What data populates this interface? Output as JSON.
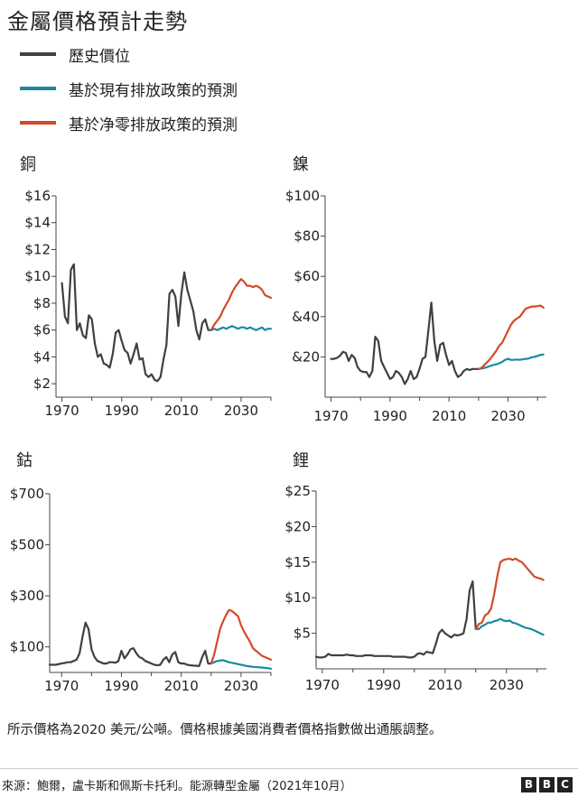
{
  "title": "金屬價格預計走勢",
  "legend": [
    {
      "label": "歷史價位",
      "color": "#404040"
    },
    {
      "label": "基於現有排放政策的預測",
      "color": "#1b8aa0"
    },
    {
      "label": "基於净零排放政策的預測",
      "color": "#d4492a"
    }
  ],
  "footnote": "所示價格為2020 美元/公噸。價格根據美國消費者價格指數做出通脹調整。",
  "source": "來源：鮑爾，盧卡斯和佩斯卡托利。能源轉型金屬（2021年10月）",
  "logo": [
    "B",
    "B",
    "C"
  ],
  "chart_data": [
    {
      "type": "line",
      "title": "銅",
      "xlim": [
        1968,
        2040
      ],
      "ylim": [
        1,
        16
      ],
      "xticks": [
        {
          "value": 1970,
          "label": "1970"
        },
        {
          "value": 1990,
          "label": "1990"
        },
        {
          "value": 2010,
          "label": "2010"
        },
        {
          "value": 2030,
          "label": "2030"
        }
      ],
      "yticks": [
        {
          "value": 2,
          "label": "$2"
        },
        {
          "value": 4,
          "label": "$4"
        },
        {
          "value": 6,
          "label": "$6"
        },
        {
          "value": 8,
          "label": "$8"
        },
        {
          "value": 10,
          "label": "$10"
        },
        {
          "value": 12,
          "label": "$12"
        },
        {
          "value": 14,
          "label": "$14"
        },
        {
          "value": 16,
          "label": "$16"
        }
      ],
      "series": [
        {
          "name": "歷史價位",
          "color": "#404040",
          "x": [
            1970,
            1971,
            1972,
            1973,
            1974,
            1975,
            1976,
            1977,
            1978,
            1979,
            1980,
            1981,
            1982,
            1983,
            1984,
            1985,
            1986,
            1987,
            1988,
            1989,
            1990,
            1991,
            1992,
            1993,
            1994,
            1995,
            1996,
            1997,
            1998,
            1999,
            2000,
            2001,
            2002,
            2003,
            2004,
            2005,
            2006,
            2007,
            2008,
            2009,
            2010,
            2011,
            2012,
            2013,
            2014,
            2015,
            2016,
            2017,
            2018,
            2019,
            2020
          ],
          "y": [
            9.5,
            7.0,
            6.5,
            10.5,
            10.9,
            6.0,
            6.5,
            5.6,
            5.4,
            7.1,
            6.8,
            5.0,
            4.0,
            4.2,
            3.5,
            3.4,
            3.2,
            4.2,
            5.8,
            6.0,
            5.2,
            4.5,
            4.3,
            3.5,
            4.2,
            5.0,
            3.8,
            3.9,
            2.7,
            2.5,
            2.7,
            2.3,
            2.2,
            2.5,
            3.8,
            4.9,
            8.7,
            9.0,
            8.5,
            6.3,
            8.7,
            10.3,
            9.0,
            8.2,
            7.4,
            6.0,
            5.3,
            6.5,
            6.8,
            6.0,
            6.0
          ]
        },
        {
          "name": "基於現有排放政策的預測",
          "color": "#1b8aa0",
          "x": [
            2020,
            2021,
            2022,
            2023,
            2024,
            2025,
            2026,
            2027,
            2028,
            2029,
            2030,
            2031,
            2032,
            2033,
            2034,
            2035,
            2036,
            2037,
            2038,
            2039,
            2040
          ],
          "y": [
            6.0,
            6.1,
            6.0,
            6.1,
            6.2,
            6.1,
            6.2,
            6.3,
            6.2,
            6.1,
            6.2,
            6.2,
            6.1,
            6.2,
            6.1,
            6.0,
            6.1,
            6.2,
            6.0,
            6.1,
            6.1
          ]
        },
        {
          "name": "基於净零排放政策的預測",
          "color": "#d4492a",
          "x": [
            2020,
            2021,
            2022,
            2023,
            2024,
            2025,
            2026,
            2027,
            2028,
            2029,
            2030,
            2031,
            2032,
            2033,
            2034,
            2035,
            2036,
            2037,
            2038,
            2039,
            2040
          ],
          "y": [
            6.0,
            6.4,
            6.7,
            7.0,
            7.5,
            7.9,
            8.3,
            8.8,
            9.2,
            9.5,
            9.8,
            9.6,
            9.3,
            9.3,
            9.2,
            9.3,
            9.2,
            9.0,
            8.6,
            8.5,
            8.4
          ]
        }
      ]
    },
    {
      "type": "line",
      "title": "鎳",
      "xlim": [
        1968,
        2043
      ],
      "ylim": [
        0,
        100
      ],
      "xticks": [
        {
          "value": 1970,
          "label": "1970"
        },
        {
          "value": 1990,
          "label": "1990"
        },
        {
          "value": 2010,
          "label": "2010"
        },
        {
          "value": 2030,
          "label": "2030"
        }
      ],
      "yticks": [
        {
          "value": 20,
          "label": "&20"
        },
        {
          "value": 40,
          "label": "&40"
        },
        {
          "value": 60,
          "label": "$60"
        },
        {
          "value": 80,
          "label": "$80"
        },
        {
          "value": 100,
          "label": "$100"
        }
      ],
      "series": [
        {
          "name": "歷史價位",
          "color": "#404040",
          "x": [
            1970,
            1971,
            1972,
            1973,
            1974,
            1975,
            1976,
            1977,
            1978,
            1979,
            1980,
            1981,
            1982,
            1983,
            1984,
            1985,
            1986,
            1987,
            1988,
            1989,
            1990,
            1991,
            1992,
            1993,
            1994,
            1995,
            1996,
            1997,
            1998,
            1999,
            2000,
            2001,
            2002,
            2003,
            2004,
            2005,
            2006,
            2007,
            2008,
            2009,
            2010,
            2011,
            2012,
            2013,
            2014,
            2015,
            2016,
            2017,
            2018,
            2019,
            2020
          ],
          "y": [
            19,
            19,
            19.5,
            20.5,
            22.5,
            22,
            18,
            21,
            19.5,
            15,
            13,
            12.5,
            12.5,
            10,
            13,
            30,
            28,
            18,
            15,
            12,
            9,
            10,
            13,
            12,
            10,
            6.5,
            9,
            13,
            9,
            10,
            14,
            19,
            20,
            33,
            47,
            28,
            18,
            26,
            27,
            21,
            16,
            18,
            13,
            10,
            11,
            13,
            14,
            13.5,
            14,
            14,
            14
          ]
        },
        {
          "name": "基於現有排放政策的預測",
          "color": "#1b8aa0",
          "x": [
            2020,
            2021,
            2022,
            2023,
            2024,
            2025,
            2026,
            2027,
            2028,
            2029,
            2030,
            2031,
            2032,
            2033,
            2034,
            2035,
            2036,
            2037,
            2038,
            2039,
            2040,
            2041,
            2042
          ],
          "y": [
            14,
            14.2,
            14.5,
            15,
            15.5,
            16,
            16.3,
            16.8,
            17.5,
            18.5,
            19,
            18.5,
            18.5,
            18.7,
            18.5,
            18.8,
            19,
            19.2,
            19.8,
            20,
            20.5,
            21,
            21.2
          ]
        },
        {
          "name": "基於净零排放政策的預測",
          "color": "#d4492a",
          "x": [
            2020,
            2021,
            2022,
            2023,
            2024,
            2025,
            2026,
            2027,
            2028,
            2029,
            2030,
            2031,
            2032,
            2033,
            2034,
            2035,
            2036,
            2037,
            2038,
            2039,
            2040,
            2041,
            2042
          ],
          "y": [
            14,
            14.5,
            16,
            17.5,
            19,
            21,
            23,
            25.5,
            27,
            30,
            33,
            36,
            38,
            39,
            40,
            42,
            44,
            44.5,
            45,
            45,
            45.2,
            45.5,
            44.5
          ]
        }
      ]
    },
    {
      "type": "line",
      "title": "鈷",
      "xlim": [
        1966,
        2040
      ],
      "ylim": [
        0,
        700
      ],
      "xticks": [
        {
          "value": 1970,
          "label": "1970"
        },
        {
          "value": 1990,
          "label": "1990"
        },
        {
          "value": 2010,
          "label": "2010"
        },
        {
          "value": 2030,
          "label": "2030"
        }
      ],
      "yticks": [
        {
          "value": 100,
          "label": "$100"
        },
        {
          "value": 300,
          "label": "$300"
        },
        {
          "value": 500,
          "label": "$500"
        },
        {
          "value": 700,
          "label": "$700"
        }
      ],
      "series": [
        {
          "name": "歷史價位",
          "color": "#404040",
          "x": [
            1966,
            1968,
            1970,
            1971,
            1972,
            1973,
            1974,
            1975,
            1976,
            1977,
            1978,
            1979,
            1980,
            1981,
            1982,
            1983,
            1984,
            1985,
            1986,
            1987,
            1988,
            1989,
            1990,
            1991,
            1992,
            1993,
            1994,
            1995,
            1996,
            1997,
            1998,
            1999,
            2000,
            2001,
            2002,
            2003,
            2004,
            2005,
            2006,
            2007,
            2008,
            2009,
            2010,
            2011,
            2012,
            2013,
            2014,
            2015,
            2016,
            2017,
            2018,
            2019,
            2020
          ],
          "y": [
            30,
            30,
            35,
            37,
            40,
            40,
            45,
            50,
            75,
            140,
            195,
            170,
            90,
            60,
            45,
            40,
            35,
            35,
            40,
            40,
            38,
            45,
            85,
            55,
            70,
            90,
            95,
            75,
            60,
            55,
            45,
            40,
            35,
            30,
            28,
            30,
            50,
            60,
            40,
            70,
            80,
            40,
            35,
            35,
            30,
            28,
            27,
            26,
            25,
            60,
            85,
            35,
            35
          ]
        },
        {
          "name": "基於現有排放政策的預測",
          "color": "#1b8aa0",
          "x": [
            2020,
            2022,
            2024,
            2026,
            2028,
            2030,
            2032,
            2034,
            2036,
            2038,
            2040
          ],
          "y": [
            35,
            45,
            48,
            40,
            35,
            30,
            25,
            22,
            20,
            18,
            15
          ]
        },
        {
          "name": "基於净零排放政策的預測",
          "color": "#d4492a",
          "x": [
            2020,
            2021,
            2022,
            2023,
            2024,
            2025,
            2026,
            2027,
            2028,
            2029,
            2030,
            2031,
            2032,
            2033,
            2034,
            2035,
            2036,
            2037,
            2038,
            2039,
            2040
          ],
          "y": [
            35,
            70,
            120,
            170,
            200,
            225,
            245,
            240,
            230,
            220,
            185,
            160,
            140,
            120,
            95,
            85,
            75,
            65,
            60,
            55,
            50
          ]
        }
      ]
    },
    {
      "type": "line",
      "title": "鋰",
      "xlim": [
        1968,
        2043
      ],
      "ylim": [
        0,
        25
      ],
      "xticks": [
        {
          "value": 1970,
          "label": "1970"
        },
        {
          "value": 1990,
          "label": "1990"
        },
        {
          "value": 2010,
          "label": "2010"
        },
        {
          "value": 2030,
          "label": "2030"
        }
      ],
      "yticks": [
        {
          "value": 5,
          "label": "$5"
        },
        {
          "value": 10,
          "label": "$10"
        },
        {
          "value": 15,
          "label": "$15"
        },
        {
          "value": 20,
          "label": "$20"
        },
        {
          "value": 25,
          "label": "$25"
        }
      ],
      "series": [
        {
          "name": "歷史價位",
          "color": "#404040",
          "x": [
            1968,
            1969,
            1970,
            1971,
            1972,
            1973,
            1974,
            1975,
            1976,
            1977,
            1978,
            1979,
            1980,
            1981,
            1982,
            1983,
            1984,
            1985,
            1986,
            1987,
            1988,
            1989,
            1990,
            1991,
            1992,
            1993,
            1994,
            1995,
            1996,
            1997,
            1998,
            1999,
            2000,
            2001,
            2002,
            2003,
            2004,
            2005,
            2006,
            2007,
            2008,
            2009,
            2010,
            2011,
            2012,
            2013,
            2014,
            2015,
            2016,
            2017,
            2018,
            2019,
            2020
          ],
          "y": [
            1.7,
            1.6,
            1.6,
            1.7,
            2.1,
            1.9,
            1.9,
            1.9,
            1.9,
            1.9,
            2.0,
            1.9,
            1.9,
            1.8,
            1.8,
            1.8,
            1.9,
            1.9,
            1.9,
            1.8,
            1.8,
            1.8,
            1.8,
            1.8,
            1.8,
            1.7,
            1.7,
            1.7,
            1.7,
            1.7,
            1.6,
            1.6,
            1.7,
            2.1,
            2.2,
            2.0,
            2.4,
            2.3,
            2.2,
            3.5,
            5.0,
            5.5,
            5.0,
            4.7,
            4.4,
            4.8,
            4.7,
            4.8,
            5.0,
            7.0,
            11.0,
            12.3,
            5.6
          ]
        },
        {
          "name": "基於現有排放政策的預測",
          "color": "#1b8aa0",
          "x": [
            2020,
            2021,
            2022,
            2023,
            2024,
            2025,
            2026,
            2027,
            2028,
            2029,
            2030,
            2031,
            2032,
            2033,
            2034,
            2035,
            2036,
            2037,
            2038,
            2039,
            2040,
            2041,
            2042
          ],
          "y": [
            5.6,
            5.6,
            6.0,
            6.2,
            6.5,
            6.5,
            6.7,
            6.8,
            7.0,
            6.8,
            6.7,
            6.8,
            6.5,
            6.4,
            6.2,
            6.0,
            5.8,
            5.7,
            5.6,
            5.4,
            5.2,
            5.0,
            4.8
          ]
        },
        {
          "name": "基於净零排放政策的預測",
          "color": "#d4492a",
          "x": [
            2020,
            2021,
            2022,
            2023,
            2024,
            2025,
            2026,
            2027,
            2028,
            2029,
            2030,
            2031,
            2032,
            2033,
            2034,
            2035,
            2036,
            2037,
            2038,
            2039,
            2040,
            2041,
            2042
          ],
          "y": [
            5.6,
            6.3,
            6.5,
            7.5,
            7.8,
            8.5,
            10.5,
            13.0,
            15.0,
            15.3,
            15.4,
            15.5,
            15.3,
            15.5,
            15.2,
            15.0,
            14.5,
            14.0,
            13.5,
            13.0,
            12.8,
            12.7,
            12.5
          ]
        }
      ]
    }
  ]
}
